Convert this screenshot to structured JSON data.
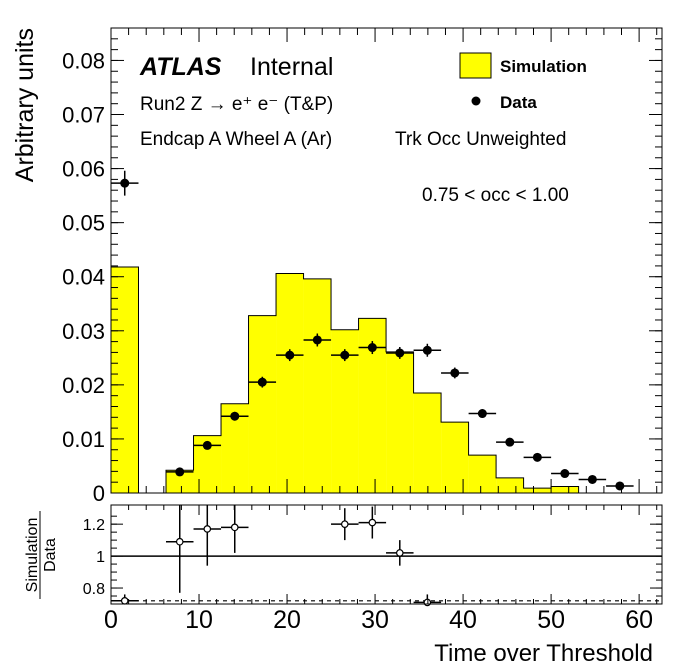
{
  "chart_data": {
    "type": "bar",
    "main": {
      "ylabel": "Arbitrary units",
      "ylim": [
        0,
        0.086
      ],
      "yticks": [
        "0",
        "0.01",
        "0.02",
        "0.03",
        "0.04",
        "0.05",
        "0.06",
        "0.07",
        "0.08"
      ],
      "xlim": [
        0,
        62.6
      ],
      "logo": "ATLAS",
      "logo_suffix": "Internal",
      "lines": [
        "Run2 Z → e⁺ e⁻ (T&P)",
        "Endcap A Wheel A (Ar)",
        "Trk Occ Unweighted",
        "0.75 < occ < 1.00"
      ],
      "legend": {
        "placement": "top-right",
        "entries": [
          "Simulation",
          "Data"
        ]
      },
      "series": [
        {
          "name": "Simulation",
          "kind": "filled-histogram",
          "color": "#ffff00",
          "bin_width": 3.125,
          "bin_starts": [
            0,
            3.125,
            6.25,
            9.375,
            12.5,
            15.625,
            18.75,
            21.875,
            25,
            28.125,
            31.25,
            34.375,
            37.5,
            40.625,
            43.75,
            46.875,
            50,
            53.125,
            56.25,
            59.375
          ],
          "values": [
            0.0418,
            0.0,
            0.0042,
            0.0106,
            0.0165,
            0.0328,
            0.0406,
            0.0396,
            0.0302,
            0.0323,
            0.0261,
            0.0185,
            0.0131,
            0.007,
            0.0028,
            0.0009,
            0.0012,
            0.0,
            0.0,
            0.0
          ]
        },
        {
          "name": "Data",
          "kind": "points-with-errors",
          "color": "#000000",
          "x": [
            1.56,
            7.81,
            10.94,
            14.06,
            17.19,
            20.31,
            23.44,
            26.56,
            29.69,
            32.81,
            35.94,
            39.06,
            42.19,
            45.31,
            48.44,
            51.56,
            54.69,
            57.81
          ],
          "y": [
            0.0573,
            0.0039,
            0.0088,
            0.0142,
            0.0205,
            0.0255,
            0.0283,
            0.0255,
            0.0269,
            0.0259,
            0.0264,
            0.0222,
            0.0147,
            0.0094,
            0.0066,
            0.0036,
            0.0025,
            0.0013
          ],
          "yerr": [
            0.0023,
            0.0004,
            0.0006,
            0.0008,
            0.001,
            0.0011,
            0.0012,
            0.0011,
            0.0012,
            0.0011,
            0.0012,
            0.001,
            0.0008,
            0.0006,
            0.0005,
            0.0004,
            0.0003,
            0.0002
          ]
        }
      ]
    },
    "ratio": {
      "ylabel_num": "Simulation",
      "ylabel_den": "Data",
      "ylim": [
        0.7,
        1.32
      ],
      "yticks": [
        "0.8",
        "1",
        "1.2"
      ],
      "reference_line": 1,
      "dashed_line": 0.72,
      "x": [
        1.56,
        7.81,
        10.94,
        14.06,
        26.56,
        29.69,
        32.81,
        35.94
      ],
      "y": [
        0.72,
        1.09,
        1.17,
        1.18,
        1.2,
        1.21,
        1.02,
        0.71
      ],
      "yerr": [
        0.04,
        0.32,
        0.23,
        0.16,
        0.1,
        0.1,
        0.08,
        0.05
      ]
    },
    "xlabel": "Time over Threshold",
    "xticks": [
      "0",
      "10",
      "20",
      "30",
      "40",
      "50",
      "60"
    ]
  }
}
